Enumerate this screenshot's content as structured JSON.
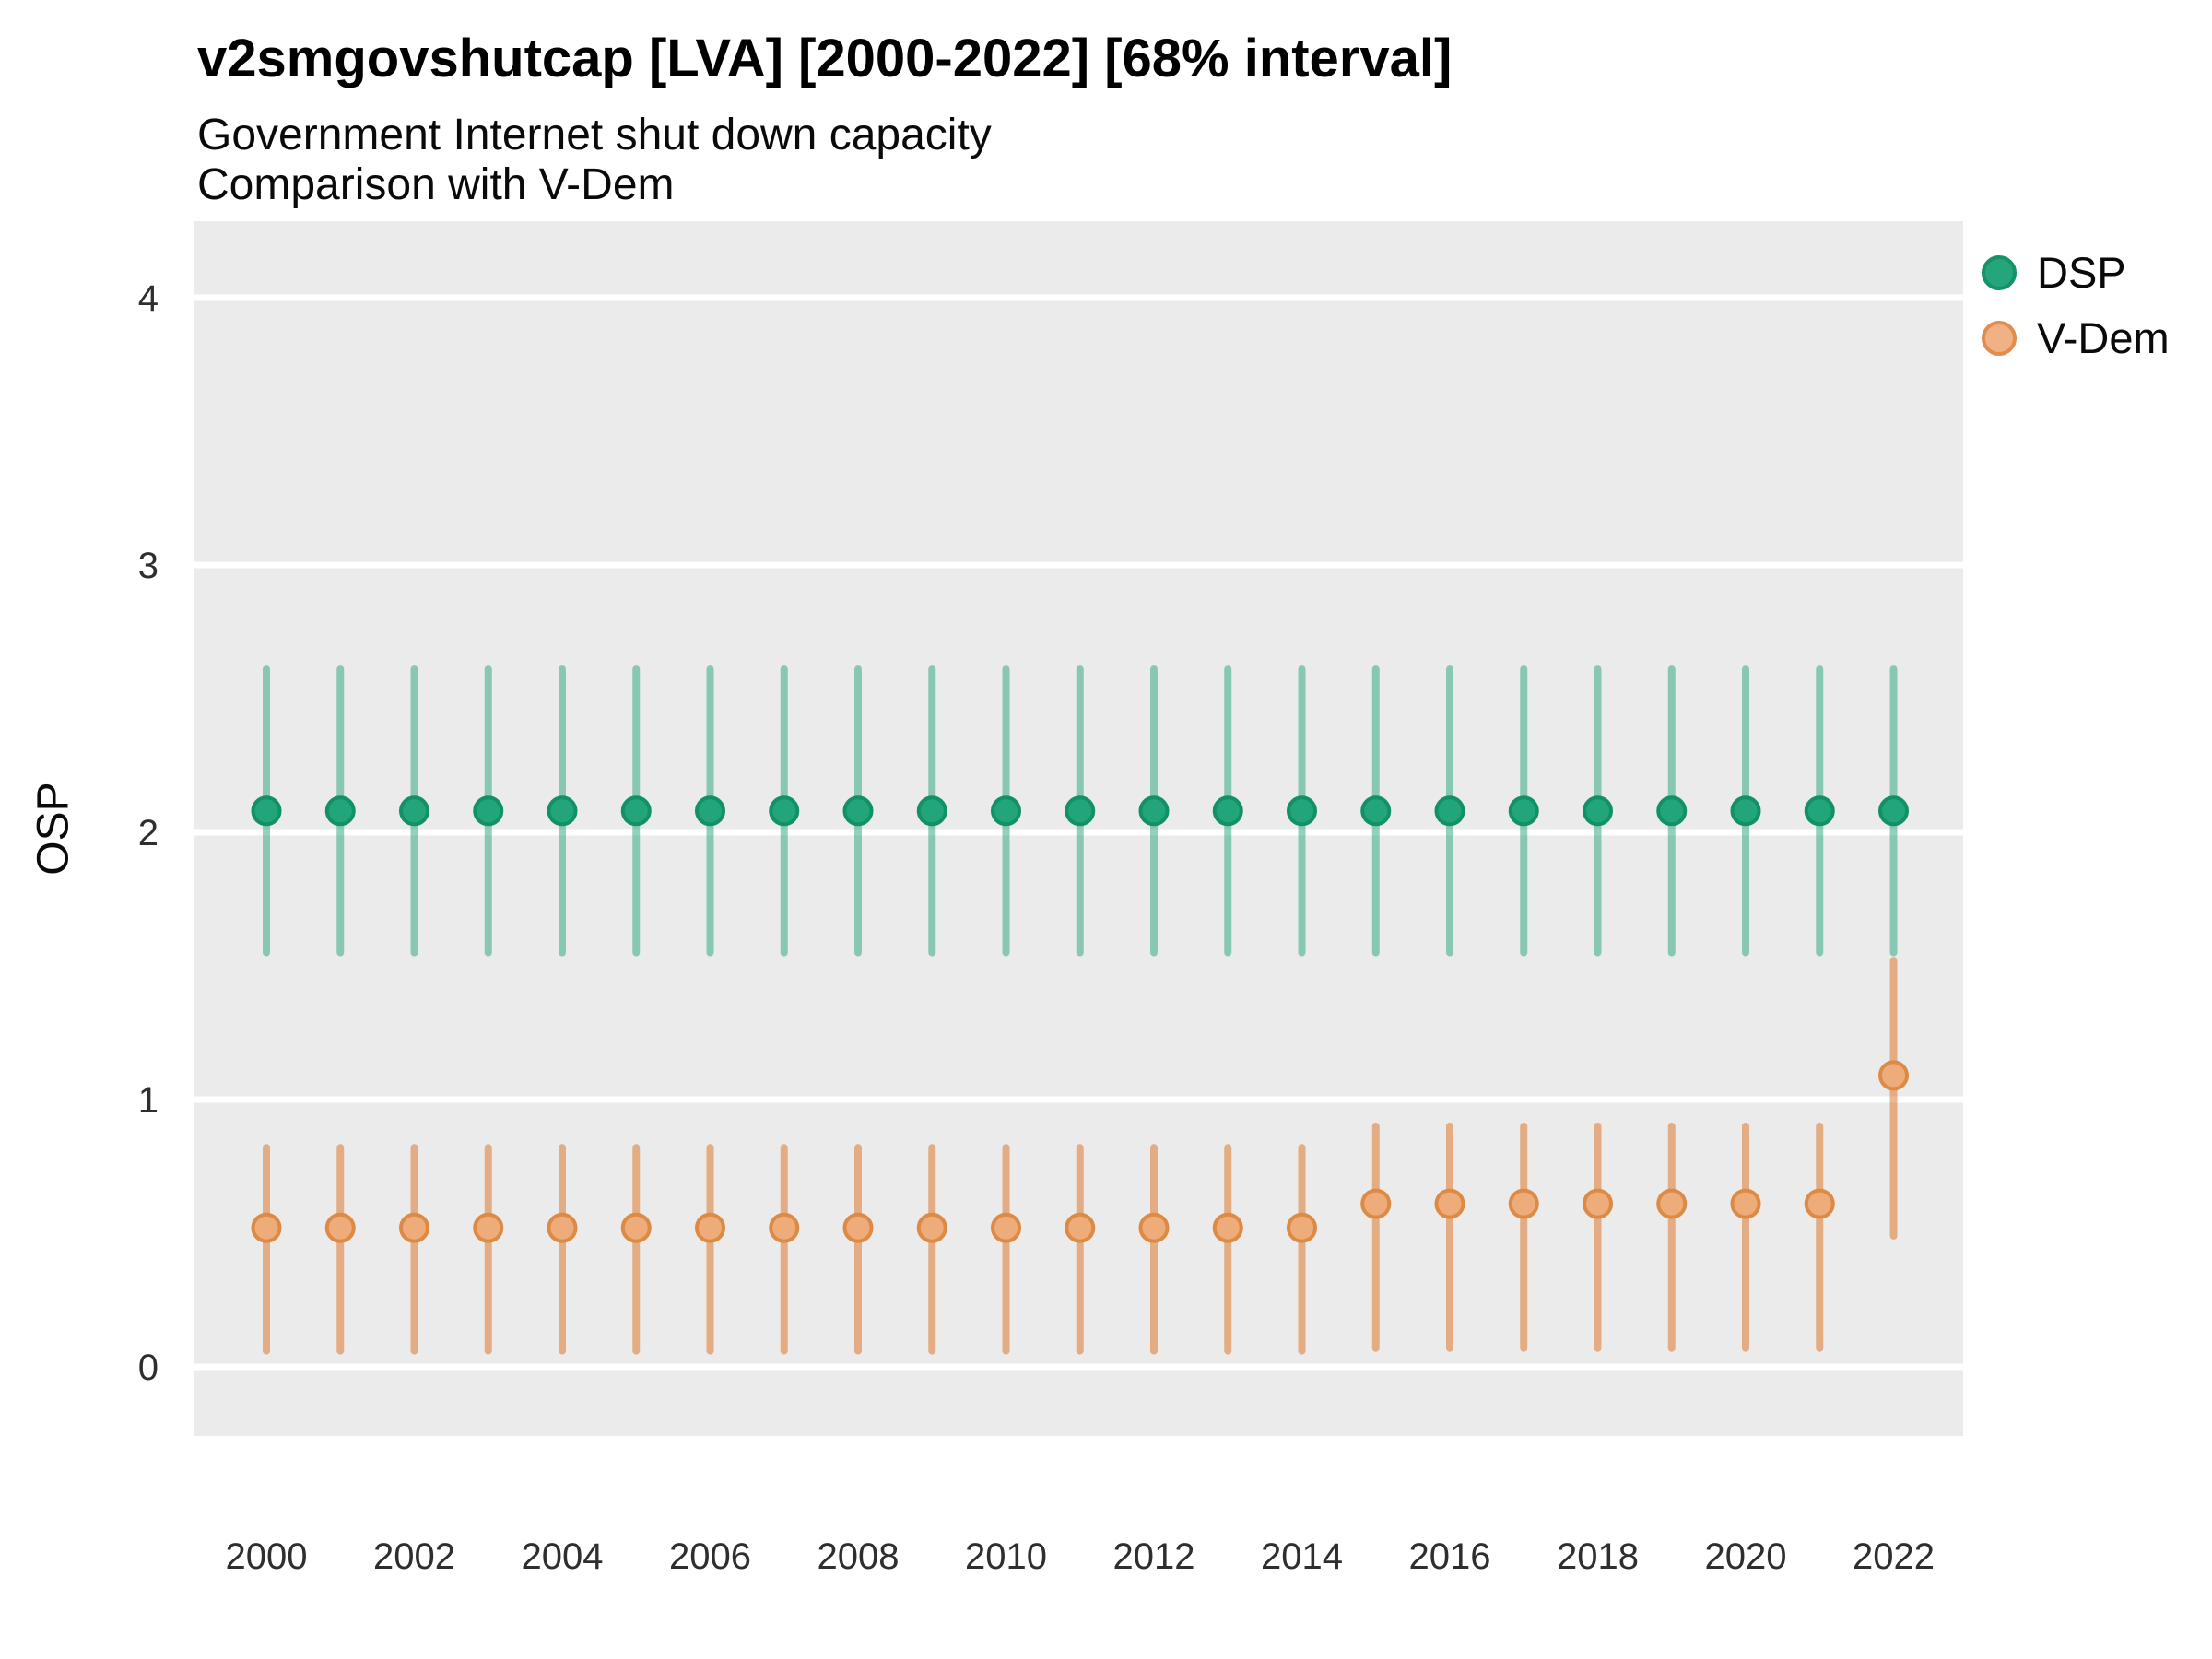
{
  "title": "v2smgovshutcap [LVA] [2000-2022] [68% interval]",
  "subtitle_line1": "Government Internet shut down capacity",
  "subtitle_line2": "Comparison with V-Dem",
  "y_axis_title": "OSP",
  "legend": [
    {
      "label": "DSP",
      "swatch_fill": "#25A57C",
      "swatch_stroke": "#149268"
    },
    {
      "label": "V-Dem",
      "swatch_fill": "#EFB185",
      "swatch_stroke": "#E28D4B"
    }
  ],
  "colors": {
    "panel_background": "#EBEBEB",
    "gridline": "#FFFFFF",
    "axis_text": "#2E2E2E",
    "series": [
      {
        "name": "DSP",
        "line": "rgba(27,158,119,0.48)",
        "point_fill": "#23A57B",
        "point_stroke": "#129167"
      },
      {
        "name": "V-Dem",
        "line": "rgba(217,95,2,0.45)",
        "point_fill": "#EEAC7B",
        "point_stroke": "#DD8A45"
      }
    ]
  },
  "chart_data": {
    "type": "pointrange",
    "title": "v2smgovshutcap [LVA] [2000-2022] [68% interval]",
    "subtitle": "Government Internet shut down capacity / Comparison with V-Dem",
    "xlabel": "",
    "ylabel": "OSP",
    "interval": "68%",
    "grid": "major-horizontal only, white on gray panel",
    "legend_position": "right",
    "ylim": [
      0,
      4
    ],
    "yticks": [
      0,
      1,
      2,
      3,
      4
    ],
    "xticks": [
      2000,
      2002,
      2004,
      2006,
      2008,
      2010,
      2012,
      2014,
      2016,
      2018,
      2020,
      2022
    ],
    "x": [
      2000,
      2001,
      2002,
      2003,
      2004,
      2005,
      2006,
      2007,
      2008,
      2009,
      2010,
      2011,
      2012,
      2013,
      2014,
      2015,
      2016,
      2017,
      2018,
      2019,
      2020,
      2021,
      2022
    ],
    "series": [
      {
        "name": "DSP",
        "est": [
          2.08,
          2.08,
          2.08,
          2.08,
          2.08,
          2.08,
          2.08,
          2.08,
          2.08,
          2.08,
          2.08,
          2.08,
          2.08,
          2.08,
          2.08,
          2.08,
          2.08,
          2.08,
          2.08,
          2.08,
          2.08,
          2.08,
          2.08
        ],
        "lo": [
          1.55,
          1.55,
          1.55,
          1.55,
          1.55,
          1.55,
          1.55,
          1.55,
          1.55,
          1.55,
          1.55,
          1.55,
          1.55,
          1.55,
          1.55,
          1.55,
          1.55,
          1.55,
          1.55,
          1.55,
          1.55,
          1.55,
          1.55
        ],
        "hi": [
          2.61,
          2.61,
          2.61,
          2.61,
          2.61,
          2.61,
          2.61,
          2.61,
          2.61,
          2.61,
          2.61,
          2.61,
          2.61,
          2.61,
          2.61,
          2.61,
          2.61,
          2.61,
          2.61,
          2.61,
          2.61,
          2.61,
          2.61
        ]
      },
      {
        "name": "V-Dem",
        "est": [
          0.52,
          0.52,
          0.52,
          0.52,
          0.52,
          0.52,
          0.52,
          0.52,
          0.52,
          0.52,
          0.52,
          0.52,
          0.52,
          0.52,
          0.52,
          0.61,
          0.61,
          0.61,
          0.61,
          0.61,
          0.61,
          0.61,
          1.09
        ],
        "lo": [
          0.06,
          0.06,
          0.06,
          0.06,
          0.06,
          0.06,
          0.06,
          0.06,
          0.06,
          0.06,
          0.06,
          0.06,
          0.06,
          0.06,
          0.06,
          0.07,
          0.07,
          0.07,
          0.07,
          0.07,
          0.07,
          0.07,
          0.49
        ],
        "hi": [
          0.82,
          0.82,
          0.82,
          0.82,
          0.82,
          0.82,
          0.82,
          0.82,
          0.82,
          0.82,
          0.82,
          0.82,
          0.82,
          0.82,
          0.82,
          0.9,
          0.9,
          0.9,
          0.9,
          0.9,
          0.9,
          0.9,
          1.52
        ]
      }
    ]
  }
}
